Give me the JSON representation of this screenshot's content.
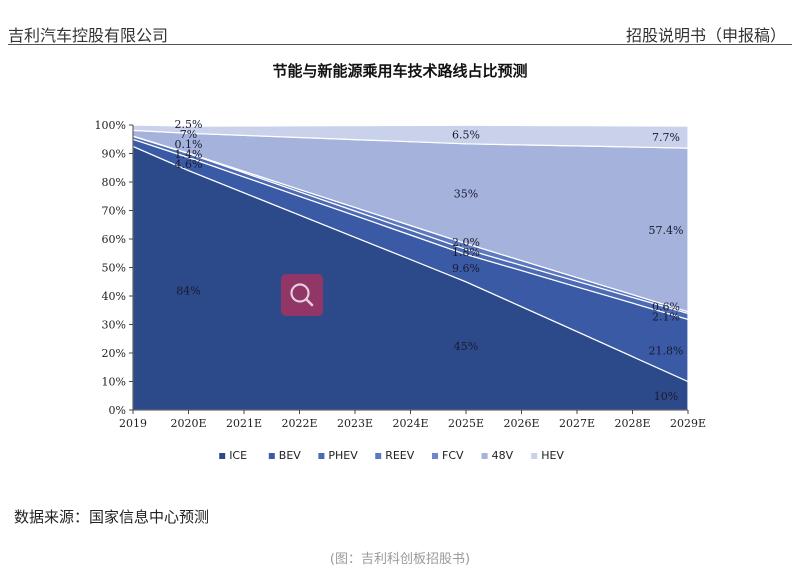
{
  "header": {
    "company": "吉利汽车控股有限公司",
    "doc_title": "招股说明书（申报稿）"
  },
  "chart_data": {
    "type": "area",
    "stacked": true,
    "title": "节能与新能源乘用车技术路线占比预测",
    "x": [
      "2019",
      "2020E",
      "2021E",
      "2022E",
      "2023E",
      "2024E",
      "2025E",
      "2026E",
      "2027E",
      "2028E",
      "2029E"
    ],
    "ylim": [
      0,
      100
    ],
    "yticks": [
      "0%",
      "10%",
      "20%",
      "30%",
      "40%",
      "50%",
      "60%",
      "70%",
      "80%",
      "90%",
      "100%"
    ],
    "grid": false,
    "legend_position": "bottom",
    "series": [
      {
        "name": "ICE",
        "color": "#2c4a8a",
        "points": {
          "2019": 92.5,
          "2020E": 84,
          "2025E": 45,
          "2029E": 10
        }
      },
      {
        "name": "BEV",
        "color": "#3a5aa6",
        "points": {
          "2019": 2.5,
          "2020E": 4.6,
          "2025E": 9.6,
          "2029E": 21.8
        }
      },
      {
        "name": "PHEV",
        "color": "#4d6bb4",
        "points": {
          "2019": 1.0,
          "2020E": 1.4,
          "2025E": 1.8,
          "2029E": 2.1
        }
      },
      {
        "name": "REEV",
        "color": "#5d7ac0",
        "points": {
          "2019": 0.1,
          "2020E": 0.1,
          "2025E": 2.0,
          "2029E": 0.6
        }
      },
      {
        "name": "FCV",
        "color": "#7186c6",
        "points": {
          "2019": 0,
          "2020E": 0,
          "2025E": 0,
          "2029E": 0
        }
      },
      {
        "name": "48V",
        "color": "#a4b2dc",
        "points": {
          "2019": 2.0,
          "2020E": 7,
          "2025E": 35,
          "2029E": 57.4
        }
      },
      {
        "name": "HEV",
        "color": "#c9d1eb",
        "points": {
          "2019": 1.9,
          "2020E": 2.5,
          "2025E": 6.5,
          "2029E": 7.7
        }
      }
    ],
    "data_labels": [
      {
        "text": "84%",
        "series": "ICE",
        "x": "2020E"
      },
      {
        "text": "4.6%",
        "series": "BEV",
        "x": "2020E"
      },
      {
        "text": "1.4%",
        "series": "PHEV",
        "x": "2020E"
      },
      {
        "text": "0.1%",
        "series": "REEV",
        "x": "2020E"
      },
      {
        "text": "7%",
        "series": "48V",
        "x": "2020E"
      },
      {
        "text": "2.5%",
        "series": "HEV",
        "x": "2020E"
      },
      {
        "text": "45%",
        "series": "ICE",
        "x": "2025E"
      },
      {
        "text": "9.6%",
        "series": "BEV",
        "x": "2025E"
      },
      {
        "text": "1.8%",
        "series": "PHEV",
        "x": "2025E"
      },
      {
        "text": "2.0%",
        "series": "REEV",
        "x": "2025E"
      },
      {
        "text": "35%",
        "series": "48V",
        "x": "2025E"
      },
      {
        "text": "6.5%",
        "series": "HEV",
        "x": "2025E"
      },
      {
        "text": "10%",
        "series": "ICE",
        "x": "2029E"
      },
      {
        "text": "21.8%",
        "series": "BEV",
        "x": "2029E"
      },
      {
        "text": "2.1%",
        "series": "PHEV",
        "x": "2029E"
      },
      {
        "text": "0.6%",
        "series": "REEV",
        "x": "2029E"
      },
      {
        "text": "57.4%",
        "series": "48V",
        "x": "2029E"
      },
      {
        "text": "7.7%",
        "series": "HEV",
        "x": "2029E"
      }
    ]
  },
  "source_note": "数据来源：国家信息中心预测",
  "caption": "(图：吉利科创板招股书)",
  "overlay": {
    "icon": "zoom-search-icon",
    "color": "#9b3565"
  }
}
